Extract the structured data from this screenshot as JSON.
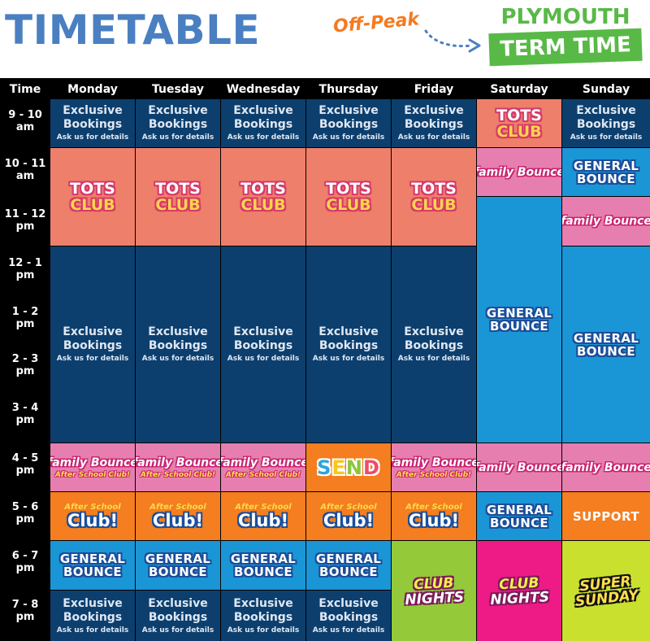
{
  "header": {
    "title": "TIMETABLE",
    "off_peak": "Off-Peak",
    "badge_line1": "PLYMOUTH",
    "badge_line2": "TERM TIME"
  },
  "columns": {
    "time": "Time",
    "days": [
      "Monday",
      "Tuesday",
      "Wednesday",
      "Thursday",
      "Friday",
      "Saturday",
      "Sunday"
    ]
  },
  "time_slots": [
    [
      "9 - 10",
      "am"
    ],
    [
      "10 - 11",
      "am"
    ],
    [
      "11 - 12",
      "pm"
    ],
    [
      "12 - 1",
      "pm"
    ],
    [
      "1 - 2",
      "pm"
    ],
    [
      "2 - 3",
      "pm"
    ],
    [
      "3 - 4",
      "pm"
    ],
    [
      "4 - 5",
      "pm"
    ],
    [
      "5 - 6",
      "pm"
    ],
    [
      "6 - 7",
      "pm"
    ],
    [
      "7 - 8",
      "pm"
    ]
  ],
  "sessions": {
    "exclusive": {
      "line1": "Exclusive",
      "line2": "Bookings",
      "sub": "Ask us for details"
    },
    "tots": {
      "line1": "TOTS",
      "line2": "CLUB"
    },
    "general": {
      "line1": "GENERAL",
      "line2": "BOUNCE"
    },
    "family": {
      "main": "family Bounce",
      "sub": "After School Club!"
    },
    "family_plain": {
      "main": "family Bounce"
    },
    "after_school": {
      "top": "After School",
      "main": "Club!"
    },
    "send": {
      "s": "S",
      "e": "E",
      "n": "N",
      "d": "D"
    },
    "support": {
      "label": "SUPPORT"
    },
    "club_nights": {
      "line1": "CLUB",
      "line2": "NIGHTS"
    },
    "super_sunday": {
      "line1": "SUPER",
      "line2": "SUNDAY"
    }
  },
  "colors": {
    "navy": "#0c3f6d",
    "salmon": "#ee7f6a",
    "sky": "#1a96d6",
    "pink": "#e67faf",
    "orange": "#f47e20",
    "lime": "#94c93a",
    "magenta": "#ee1a86",
    "yellowgreen": "#c9e02f",
    "title_blue": "#4a7fc1",
    "badge_green": "#58b947"
  }
}
